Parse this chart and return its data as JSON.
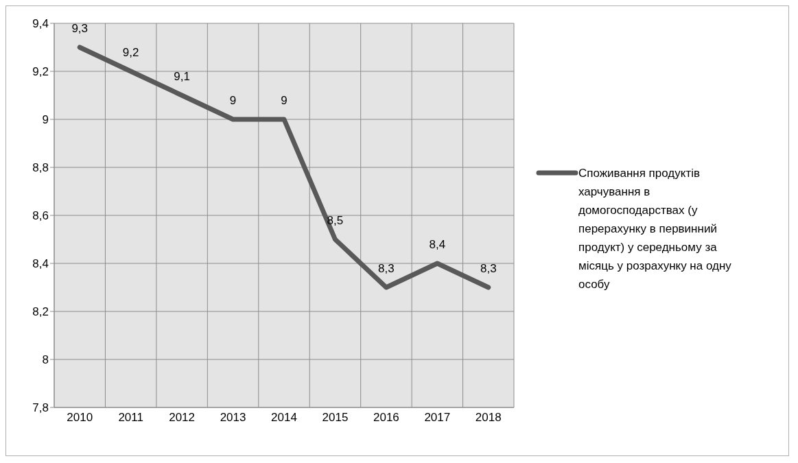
{
  "chart_data": {
    "type": "line",
    "categories": [
      "2010",
      "2011",
      "2012",
      "2013",
      "2014",
      "2015",
      "2016",
      "2017",
      "2018"
    ],
    "series": [
      {
        "name": "Споживання продуктів харчування в домогосподарствах (у перерахунку в первинний продукт) у середньому за місяць у розрахунку на одну особу",
        "color": "#595959",
        "values": [
          9.3,
          9.2,
          9.1,
          9,
          9,
          8.5,
          8.3,
          8.4,
          8.3
        ],
        "value_labels": [
          "9,3",
          "9,2",
          "9,1",
          "9",
          "9",
          "8,5",
          "8,3",
          "8,4",
          "8,3"
        ]
      }
    ],
    "ylim": [
      7.8,
      9.4
    ],
    "yticks": [
      {
        "value": 7.8,
        "label": "7,8"
      },
      {
        "value": 8,
        "label": "8"
      },
      {
        "value": 8.2,
        "label": "8,2"
      },
      {
        "value": 8.4,
        "label": "8,4"
      },
      {
        "value": 8.6,
        "label": "8,6"
      },
      {
        "value": 8.8,
        "label": "8,8"
      },
      {
        "value": 9,
        "label": "9"
      },
      {
        "value": 9.2,
        "label": "9,2"
      },
      {
        "value": 9.4,
        "label": "9,4"
      }
    ],
    "grid": true,
    "legend": "right",
    "marker": "none",
    "line_style": "solid"
  }
}
